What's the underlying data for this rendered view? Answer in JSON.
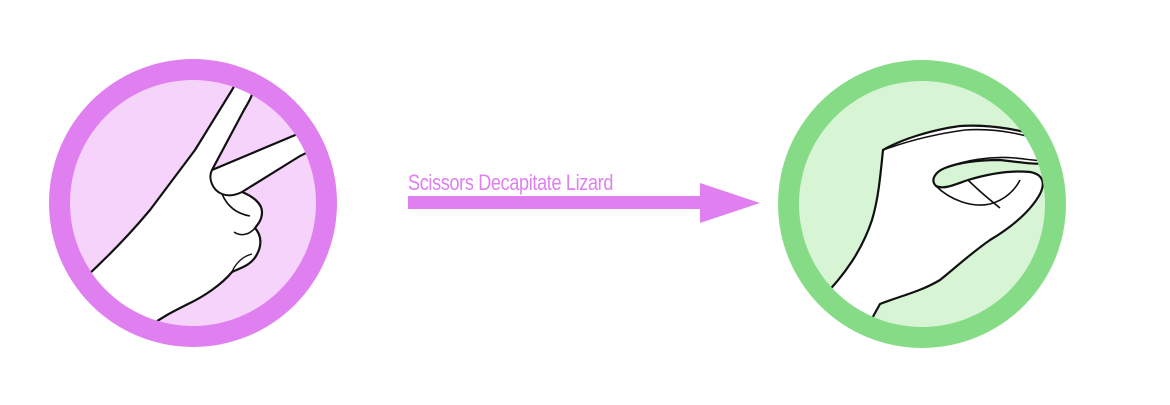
{
  "diagram": {
    "arrow_label": "Scissors Decapitate Lizard",
    "source": {
      "gesture": "scissors-hand-icon",
      "ring_color": "#e07ff0",
      "fill_color": "#f6d3fb"
    },
    "target": {
      "gesture": "lizard-hand-icon",
      "ring_color": "#86dc86",
      "fill_color": "#d7f5d5"
    },
    "arrow_color": "#e07ff0"
  }
}
